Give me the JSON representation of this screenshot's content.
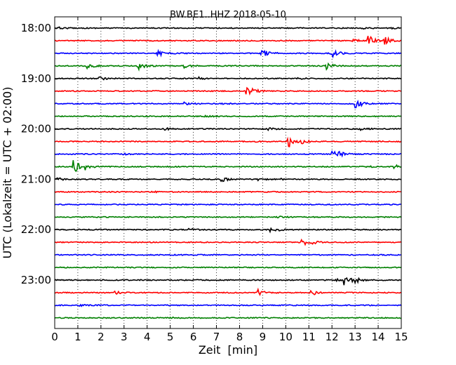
{
  "chart_data": {
    "type": "line",
    "title": "BW.BE1..HHZ 2018-05-10",
    "xlabel": "Zeit  [min]",
    "ylabel": "UTC (Lokalzeit = UTC + 02:00)",
    "xlim": [
      0,
      15
    ],
    "x_ticks": [
      "0",
      "1",
      "2",
      "3",
      "4",
      "5",
      "6",
      "7",
      "8",
      "9",
      "10",
      "11",
      "12",
      "13",
      "14",
      "15"
    ],
    "y_ticks": [
      "18:00",
      "19:00",
      "20:00",
      "21:00",
      "22:00",
      "23:00"
    ],
    "grid": "vertical dotted",
    "trace_interval_min": 15,
    "trace_colors": [
      "#000000",
      "#ff0000",
      "#0000ff",
      "#008000"
    ],
    "series": [
      {
        "start": "18:00",
        "events": [
          [
            0.2,
            1
          ],
          [
            13.3,
            1
          ],
          [
            14.6,
            1
          ]
        ]
      },
      {
        "start": "18:15",
        "events": [
          [
            13.55,
            9
          ],
          [
            14.25,
            7
          ],
          [
            12.9,
            2
          ]
        ]
      },
      {
        "start": "18:30",
        "events": [
          [
            4.45,
            5
          ],
          [
            8.95,
            7
          ],
          [
            12.0,
            6
          ],
          [
            5.1,
            1
          ]
        ]
      },
      {
        "start": "18:45",
        "events": [
          [
            1.4,
            6
          ],
          [
            3.6,
            6
          ],
          [
            5.6,
            3
          ],
          [
            11.75,
            5
          ]
        ]
      },
      {
        "start": "19:00",
        "events": [
          [
            1.9,
            3
          ],
          [
            6.2,
            2
          ],
          [
            10.5,
            1
          ]
        ]
      },
      {
        "start": "19:15",
        "events": [
          [
            8.3,
            8
          ],
          [
            8.6,
            2
          ]
        ]
      },
      {
        "start": "19:30",
        "events": [
          [
            13.0,
            8
          ],
          [
            5.6,
            2
          ],
          [
            7.2,
            1
          ]
        ]
      },
      {
        "start": "19:45",
        "events": [
          [
            6.5,
            1
          ]
        ]
      },
      {
        "start": "20:00",
        "events": [
          [
            4.7,
            2
          ],
          [
            9.2,
            2
          ],
          [
            13.2,
            2
          ]
        ]
      },
      {
        "start": "20:15",
        "events": [
          [
            10.1,
            9
          ],
          [
            10.7,
            3
          ],
          [
            8.7,
            1
          ]
        ]
      },
      {
        "start": "20:30",
        "events": [
          [
            3.0,
            2
          ],
          [
            12.0,
            6
          ],
          [
            12.3,
            3
          ]
        ]
      },
      {
        "start": "20:45",
        "events": [
          [
            0.8,
            11
          ],
          [
            1.3,
            5
          ],
          [
            14.7,
            3
          ],
          [
            13.5,
            1
          ]
        ]
      },
      {
        "start": "21:00",
        "events": [
          [
            0.1,
            2
          ],
          [
            7.2,
            4
          ],
          [
            8.8,
            2
          ],
          [
            9.8,
            1
          ]
        ]
      },
      {
        "start": "21:15",
        "events": [
          [
            4.3,
            1
          ]
        ]
      },
      {
        "start": "21:30",
        "events": []
      },
      {
        "start": "21:45",
        "events": [
          [
            9.6,
            2
          ]
        ]
      },
      {
        "start": "22:00",
        "events": [
          [
            5.8,
            2
          ],
          [
            9.3,
            3
          ],
          [
            9.7,
            1
          ]
        ]
      },
      {
        "start": "22:15",
        "events": [
          [
            10.7,
            5
          ],
          [
            11.1,
            2
          ]
        ]
      },
      {
        "start": "22:30",
        "events": []
      },
      {
        "start": "22:45",
        "events": []
      },
      {
        "start": "23:00",
        "events": [
          [
            12.5,
            10
          ],
          [
            12.2,
            3
          ],
          [
            13.0,
            3
          ]
        ]
      },
      {
        "start": "23:15",
        "events": [
          [
            8.8,
            4
          ],
          [
            11.1,
            4
          ],
          [
            2.6,
            2
          ]
        ]
      },
      {
        "start": "23:30",
        "events": [
          [
            1.1,
            1
          ]
        ]
      },
      {
        "start": "23:45",
        "events": [
          [
            5.0,
            1
          ]
        ]
      }
    ]
  }
}
